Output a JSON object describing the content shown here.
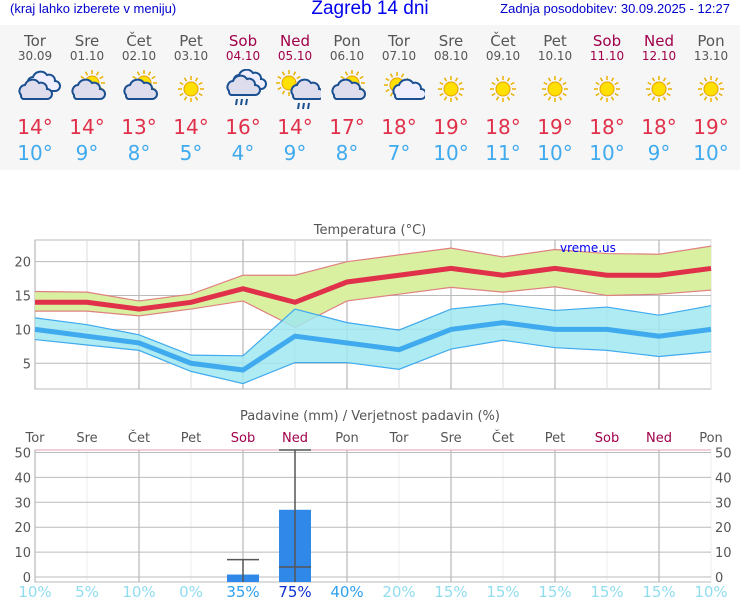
{
  "header": {
    "hint": "(kraj lahko izberete v meniju)",
    "title": "Zagreb 14 dni",
    "updated": "Zadnja posodobitev: 30.09.2025 - 12:27"
  },
  "days": [
    {
      "name": "Tor",
      "date": "30.09",
      "icon": "cloudy",
      "max": "14°",
      "min": "10°",
      "weekend": false
    },
    {
      "name": "Sre",
      "date": "01.10",
      "icon": "partly-cloudy",
      "max": "14°",
      "min": "9°",
      "weekend": false
    },
    {
      "name": "Čet",
      "date": "02.10",
      "icon": "partly-cloudy",
      "max": "13°",
      "min": "8°",
      "weekend": false
    },
    {
      "name": "Pet",
      "date": "03.10",
      "icon": "sunny",
      "max": "14°",
      "min": "5°",
      "weekend": false
    },
    {
      "name": "Sob",
      "date": "04.10",
      "icon": "rain",
      "max": "16°",
      "min": "4°",
      "weekend": true
    },
    {
      "name": "Ned",
      "date": "05.10",
      "icon": "sun-rain",
      "max": "14°",
      "min": "9°",
      "weekend": true
    },
    {
      "name": "Pon",
      "date": "06.10",
      "icon": "partly-cloudy",
      "max": "17°",
      "min": "8°",
      "weekend": false
    },
    {
      "name": "Tor",
      "date": "07.10",
      "icon": "mostly-sunny",
      "max": "18°",
      "min": "7°",
      "weekend": false
    },
    {
      "name": "Sre",
      "date": "08.10",
      "icon": "sunny",
      "max": "19°",
      "min": "10°",
      "weekend": false
    },
    {
      "name": "Čet",
      "date": "09.10",
      "icon": "sunny",
      "max": "18°",
      "min": "11°",
      "weekend": false
    },
    {
      "name": "Pet",
      "date": "10.10",
      "icon": "sunny",
      "max": "19°",
      "min": "10°",
      "weekend": false
    },
    {
      "name": "Sob",
      "date": "11.10",
      "icon": "sunny",
      "max": "18°",
      "min": "10°",
      "weekend": true
    },
    {
      "name": "Ned",
      "date": "12.10",
      "icon": "sunny",
      "max": "18°",
      "min": "9°",
      "weekend": true
    },
    {
      "name": "Pon",
      "date": "13.10",
      "icon": "sunny",
      "max": "19°",
      "min": "10°",
      "weekend": false
    }
  ],
  "colors": {
    "max": "#e0304a",
    "min": "#40aaee",
    "weekend": "#a0004a",
    "max_band": "#d8f0a0",
    "min_band": "#a0e8f0",
    "precip": "#3088e8"
  },
  "chart_data": [
    {
      "type": "line",
      "title": "Temperatura (°C)",
      "watermark": "vreme.us",
      "ylim": [
        1.2,
        23.2
      ],
      "yticks": [
        5,
        10,
        15,
        20
      ],
      "grid": true,
      "x": [
        "30.09",
        "01.10",
        "02.10",
        "03.10",
        "04.10",
        "05.10",
        "06.10",
        "07.10",
        "08.10",
        "09.10",
        "10.10",
        "11.10",
        "12.10",
        "13.10"
      ],
      "series": [
        {
          "values": [
            14,
            14,
            13,
            14,
            16,
            14,
            17,
            18,
            19,
            18,
            19,
            18,
            18,
            19
          ],
          "band_high": [
            15.6,
            15.5,
            14.2,
            15.2,
            18,
            18,
            20,
            21,
            22,
            20.7,
            21.8,
            21.2,
            21.1,
            22.3
          ],
          "band_low": [
            12.7,
            12.7,
            12,
            13,
            14.2,
            10.3,
            14.2,
            15.2,
            16.2,
            15.5,
            16.3,
            15,
            15.2,
            15.8
          ]
        },
        {
          "values": [
            10,
            9,
            8,
            5,
            4,
            9,
            8,
            7,
            10,
            11,
            10,
            10,
            9,
            10
          ],
          "band_high": [
            11.7,
            10.7,
            9.2,
            6.2,
            6.1,
            13,
            11,
            9.9,
            13,
            13.8,
            12.8,
            13.3,
            12.1,
            13.5
          ],
          "band_low": [
            8.5,
            7.7,
            6.9,
            3.8,
            2,
            5.1,
            5.1,
            4.1,
            7.1,
            8.4,
            7.3,
            6.9,
            6,
            6.7
          ]
        }
      ]
    },
    {
      "type": "bar",
      "title": "Padavine (mm) / Verjetnost padavin (%)",
      "ylim": [
        -2,
        51
      ],
      "yticks": [
        0,
        10,
        20,
        30,
        40,
        50
      ],
      "grid": true,
      "categories": [
        "Tor",
        "Sre",
        "Čet",
        "Pet",
        "Sob",
        "Ned",
        "Pon",
        "Tor",
        "Sre",
        "Čet",
        "Pet",
        "Sob",
        "Ned",
        "Pon"
      ],
      "values": [
        0,
        0,
        0,
        0,
        1,
        27,
        0,
        0,
        0,
        0,
        0,
        0,
        0,
        0
      ],
      "range_low": [
        null,
        null,
        null,
        null,
        0,
        4,
        null,
        null,
        null,
        null,
        null,
        null,
        null,
        null
      ],
      "range_high": [
        null,
        null,
        null,
        null,
        7,
        51,
        null,
        null,
        null,
        null,
        null,
        null,
        null,
        null
      ],
      "probability": [
        "10%",
        "5%",
        "10%",
        "0%",
        "35%",
        "75%",
        "40%",
        "20%",
        "15%",
        "15%",
        "15%",
        "15%",
        "15%",
        "10%"
      ]
    }
  ]
}
